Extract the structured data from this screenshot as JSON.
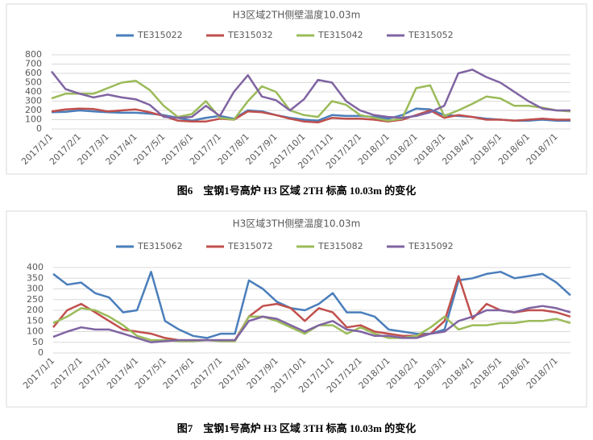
{
  "chart_data": [
    {
      "type": "line",
      "title": "H3区域2TH侧壁温度10.03m",
      "categories": [
        "2017/1/1",
        null,
        "2017/2/1",
        null,
        "2017/3/1",
        null,
        "2017/4/1",
        null,
        "2017/5/1",
        null,
        "2017/6/1",
        null,
        "2017/7/1",
        null,
        "2017/8/1",
        null,
        "2017/9/1",
        null,
        "2017/10/1",
        null,
        "2017/11/1",
        null,
        "2017/12/1",
        null,
        "2018/1/1",
        null,
        "2018/2/1",
        null,
        "2018/3/1",
        null,
        "2018/4/1",
        null,
        "2018/5/1",
        null,
        "2018/6/1",
        null,
        "2018/7/1",
        null
      ],
      "ylim": [
        0,
        800
      ],
      "yticks": [
        0,
        100,
        200,
        300,
        400,
        500,
        600,
        700,
        800
      ],
      "grid": true,
      "legend": "top",
      "series": [
        {
          "name": "TE315022",
          "color": "#4a7ebb",
          "values": [
            180,
            185,
            200,
            190,
            180,
            175,
            175,
            165,
            150,
            120,
            90,
            120,
            140,
            110,
            200,
            190,
            150,
            120,
            100,
            90,
            150,
            140,
            140,
            130,
            110,
            150,
            220,
            210,
            150,
            140,
            130,
            110,
            100,
            90,
            90,
            100,
            90,
            90
          ]
        },
        {
          "name": "TE315032",
          "color": "#c0504d",
          "values": [
            190,
            210,
            220,
            215,
            190,
            200,
            210,
            180,
            140,
            90,
            80,
            80,
            110,
            100,
            190,
            180,
            150,
            110,
            80,
            70,
            120,
            110,
            110,
            100,
            80,
            100,
            150,
            200,
            120,
            150,
            130,
            100,
            100,
            90,
            100,
            110,
            100,
            100
          ]
        },
        {
          "name": "TE315042",
          "color": "#9bbb59",
          "values": [
            330,
            380,
            380,
            380,
            440,
            500,
            520,
            420,
            250,
            130,
            160,
            300,
            120,
            100,
            300,
            460,
            400,
            200,
            150,
            130,
            300,
            260,
            150,
            120,
            90,
            110,
            440,
            470,
            140,
            200,
            270,
            350,
            330,
            250,
            250,
            230,
            200,
            190
          ]
        },
        {
          "name": "TE315052",
          "color": "#8064a2",
          "values": [
            620,
            430,
            380,
            340,
            370,
            340,
            320,
            260,
            130,
            120,
            130,
            250,
            140,
            400,
            580,
            350,
            310,
            200,
            320,
            530,
            500,
            300,
            200,
            150,
            130,
            120,
            140,
            180,
            250,
            600,
            640,
            560,
            500,
            400,
            300,
            220,
            200,
            200
          ]
        }
      ]
    },
    {
      "type": "line",
      "title": "H3区域3TH侧壁温度10.03m",
      "categories": [
        "2017/1/1",
        null,
        "2017/2/1",
        null,
        "2017/3/1",
        null,
        "2017/4/1",
        null,
        "2017/5/1",
        null,
        "2017/6/1",
        null,
        "2017/7/1",
        null,
        "2017/8/1",
        null,
        "2017/9/1",
        null,
        "2017/10/1",
        null,
        "2017/11/1",
        null,
        "2017/12/1",
        null,
        "2018/1/1",
        null,
        "2018/2/1",
        null,
        "2018/3/1",
        null,
        "2018/4/1",
        null,
        "2018/5/1",
        null,
        "2018/6/1",
        null,
        "2018/7/1",
        null
      ],
      "ylim": [
        0,
        400
      ],
      "yticks": [
        0,
        50,
        100,
        150,
        200,
        250,
        300,
        350,
        400
      ],
      "grid": true,
      "legend": "top",
      "series": [
        {
          "name": "TE315062",
          "color": "#4a7ebb",
          "values": [
            370,
            320,
            330,
            280,
            260,
            190,
            200,
            380,
            150,
            110,
            80,
            70,
            90,
            90,
            340,
            300,
            240,
            210,
            200,
            230,
            280,
            190,
            190,
            170,
            110,
            100,
            90,
            90,
            110,
            340,
            350,
            370,
            380,
            350,
            360,
            370,
            330,
            270
          ]
        },
        {
          "name": "TE315072",
          "color": "#c0504d",
          "values": [
            120,
            200,
            230,
            190,
            150,
            110,
            100,
            90,
            70,
            60,
            60,
            60,
            60,
            60,
            170,
            220,
            230,
            210,
            150,
            210,
            190,
            120,
            130,
            100,
            90,
            80,
            80,
            90,
            150,
            360,
            160,
            230,
            200,
            190,
            200,
            200,
            190,
            170
          ]
        },
        {
          "name": "TE315082",
          "color": "#9bbb59",
          "values": [
            140,
            170,
            210,
            200,
            170,
            130,
            80,
            60,
            60,
            55,
            55,
            60,
            55,
            55,
            170,
            170,
            150,
            120,
            90,
            130,
            130,
            90,
            120,
            90,
            70,
            70,
            80,
            120,
            170,
            110,
            130,
            130,
            140,
            140,
            150,
            150,
            160,
            140
          ]
        },
        {
          "name": "TE315092",
          "color": "#8064a2",
          "values": [
            75,
            100,
            120,
            110,
            110,
            90,
            70,
            50,
            55,
            60,
            60,
            60,
            60,
            60,
            150,
            170,
            160,
            130,
            100,
            130,
            150,
            110,
            100,
            80,
            80,
            70,
            70,
            90,
            100,
            150,
            170,
            200,
            200,
            190,
            210,
            220,
            210,
            190
          ]
        }
      ]
    }
  ],
  "figure_captions": [
    "图6　宝钢1号高炉 H3 区域 2TH 标高 10.03m 的变化",
    "图7　宝钢1号高炉 H3 区域 3TH 标高 10.03m 的变化"
  ]
}
